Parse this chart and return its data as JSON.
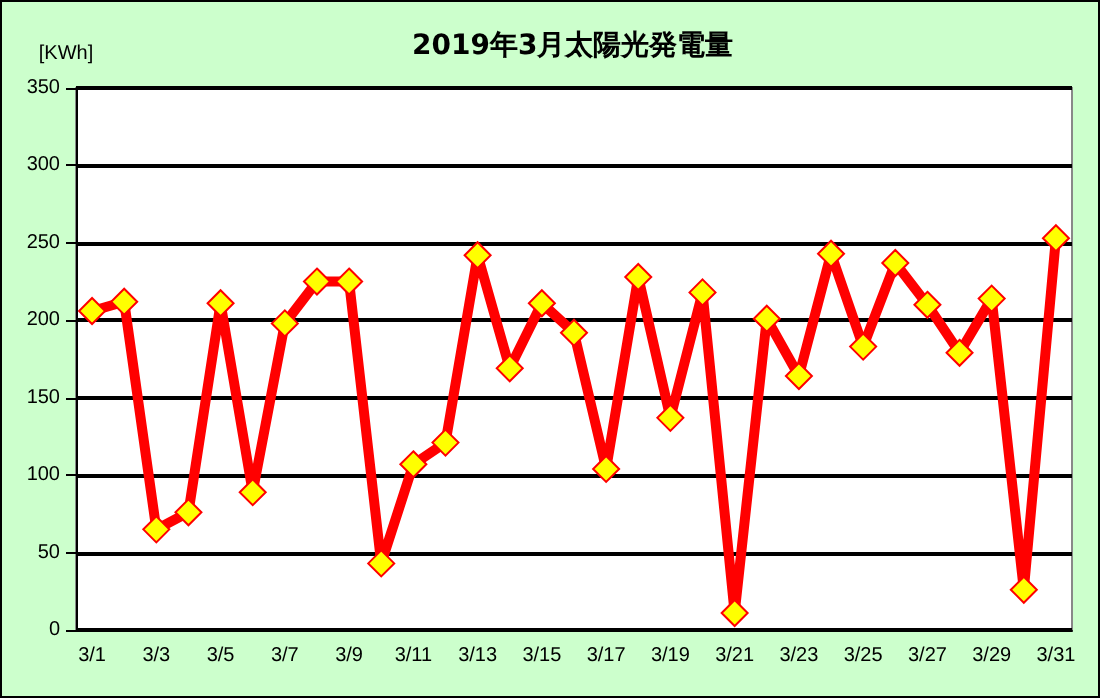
{
  "chart_data": {
    "type": "line",
    "title": "2019年3月太陽光発電量",
    "ylabel": "[KWh]",
    "categories": [
      "3/1",
      null,
      "3/3",
      null,
      "3/5",
      null,
      "3/7",
      null,
      "3/9",
      null,
      "3/11",
      null,
      "3/13",
      null,
      "3/15",
      null,
      "3/17",
      null,
      "3/19",
      null,
      "3/21",
      null,
      "3/23",
      null,
      "3/25",
      null,
      "3/27",
      null,
      "3/29",
      null,
      "3/31"
    ],
    "series": [
      {
        "color": "#ff0000",
        "values": [
          206,
          212,
          65,
          76,
          211,
          89,
          198,
          225,
          225,
          43,
          107,
          121,
          242,
          169,
          211,
          192,
          104,
          228,
          137,
          218,
          11,
          201,
          164,
          243,
          183,
          237,
          210,
          179,
          214,
          26,
          253
        ]
      }
    ],
    "ylim": [
      0,
      350
    ],
    "yticks": [
      0,
      50,
      100,
      150,
      200,
      250,
      300,
      350
    ],
    "grid": "y",
    "marker": "diamond",
    "line_style": "solid"
  }
}
